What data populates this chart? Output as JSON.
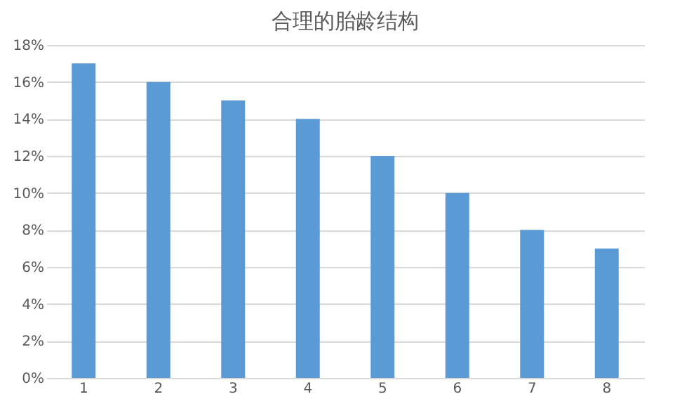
{
  "chart_data": {
    "type": "bar",
    "title": "合理的胎龄结构",
    "categories": [
      "1",
      "2",
      "3",
      "4",
      "5",
      "6",
      "7",
      "8"
    ],
    "values": [
      17,
      16,
      15,
      14,
      12,
      10,
      8,
      7
    ],
    "color": "#5b9bd5",
    "ylim": [
      0,
      18
    ],
    "yticks": [
      {
        "value": 0,
        "label": "0%"
      },
      {
        "value": 2,
        "label": "2%"
      },
      {
        "value": 4,
        "label": "4%"
      },
      {
        "value": 6,
        "label": "6%"
      },
      {
        "value": 8,
        "label": "8%"
      },
      {
        "value": 10,
        "label": "10%"
      },
      {
        "value": 12,
        "label": "12%"
      },
      {
        "value": 14,
        "label": "14%"
      },
      {
        "value": 16,
        "label": "16%"
      },
      {
        "value": 18,
        "label": "18%"
      }
    ],
    "grid": "y"
  }
}
